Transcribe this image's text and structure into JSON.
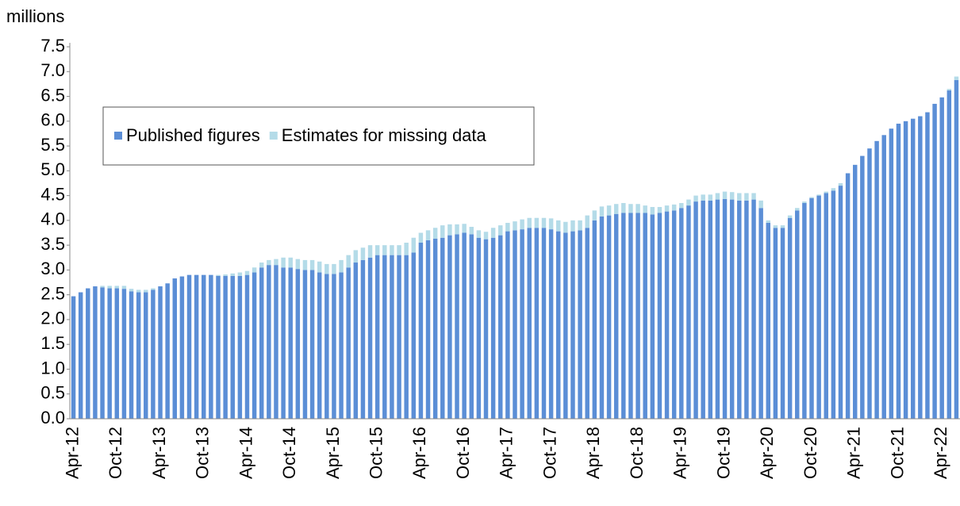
{
  "chart_data": {
    "type": "stacked_bar",
    "y_label": "millions",
    "categories": [
      "Apr-12",
      null,
      null,
      null,
      null,
      null,
      "Oct-12",
      null,
      null,
      null,
      null,
      null,
      "Apr-13",
      null,
      null,
      null,
      null,
      null,
      "Oct-13",
      null,
      null,
      null,
      null,
      null,
      "Apr-14",
      null,
      null,
      null,
      null,
      null,
      "Oct-14",
      null,
      null,
      null,
      null,
      null,
      "Apr-15",
      null,
      null,
      null,
      null,
      null,
      "Oct-15",
      null,
      null,
      null,
      null,
      null,
      "Apr-16",
      null,
      null,
      null,
      null,
      null,
      "Oct-16",
      null,
      null,
      null,
      null,
      null,
      "Apr-17",
      null,
      null,
      null,
      null,
      null,
      "Oct-17",
      null,
      null,
      null,
      null,
      null,
      "Apr-18",
      null,
      null,
      null,
      null,
      null,
      "Oct-18",
      null,
      null,
      null,
      null,
      null,
      "Apr-19",
      null,
      null,
      null,
      null,
      null,
      "Oct-19",
      null,
      null,
      null,
      null,
      null,
      "Apr-20",
      null,
      null,
      null,
      null,
      null,
      "Oct-20",
      null,
      null,
      null,
      null,
      null,
      "Apr-21",
      null,
      null,
      null,
      null,
      null,
      "Oct-21",
      null,
      null,
      null,
      null,
      null,
      "Apr-22",
      null,
      null
    ],
    "series": [
      {
        "name": "Published figures",
        "color": "#5b8ed6",
        "values": [
          2.47,
          2.55,
          2.63,
          2.67,
          2.65,
          2.63,
          2.63,
          2.62,
          2.57,
          2.55,
          2.55,
          2.6,
          2.67,
          2.73,
          2.83,
          2.87,
          2.9,
          2.9,
          2.9,
          2.9,
          2.88,
          2.88,
          2.88,
          2.88,
          2.9,
          2.95,
          3.05,
          3.1,
          3.1,
          3.05,
          3.05,
          3.02,
          3.0,
          3.0,
          2.95,
          2.92,
          2.92,
          2.95,
          3.05,
          3.15,
          3.2,
          3.25,
          3.3,
          3.3,
          3.3,
          3.3,
          3.3,
          3.35,
          3.55,
          3.6,
          3.63,
          3.65,
          3.7,
          3.72,
          3.75,
          3.72,
          3.65,
          3.62,
          3.65,
          3.7,
          3.78,
          3.8,
          3.82,
          3.85,
          3.85,
          3.85,
          3.82,
          3.78,
          3.75,
          3.78,
          3.8,
          3.85,
          4.0,
          4.08,
          4.1,
          4.13,
          4.15,
          4.15,
          4.15,
          4.15,
          4.12,
          4.15,
          4.18,
          4.2,
          4.25,
          4.3,
          4.38,
          4.4,
          4.4,
          4.42,
          4.43,
          4.42,
          4.4,
          4.4,
          4.42,
          4.25,
          3.95,
          3.85,
          3.85,
          4.05,
          4.2,
          4.35,
          4.45,
          4.5,
          4.55,
          4.6,
          4.7,
          4.95,
          5.12,
          5.3,
          5.45,
          5.6,
          5.72,
          5.85,
          5.95,
          6.0,
          6.05,
          6.1,
          6.18,
          6.35,
          6.48,
          6.62,
          6.83
        ]
      },
      {
        "name": "Estimates for missing data",
        "color": "#b4dbe8",
        "values": [
          0,
          0,
          0,
          0,
          0.03,
          0.05,
          0.05,
          0.06,
          0.05,
          0.05,
          0.05,
          0.03,
          0,
          0,
          0,
          0,
          0,
          0,
          0,
          0,
          0.02,
          0.03,
          0.05,
          0.07,
          0.08,
          0.1,
          0.1,
          0.1,
          0.12,
          0.2,
          0.2,
          0.2,
          0.2,
          0.2,
          0.22,
          0.2,
          0.2,
          0.25,
          0.25,
          0.25,
          0.25,
          0.25,
          0.2,
          0.2,
          0.2,
          0.2,
          0.25,
          0.3,
          0.2,
          0.2,
          0.22,
          0.25,
          0.22,
          0.2,
          0.18,
          0.15,
          0.15,
          0.15,
          0.2,
          0.2,
          0.17,
          0.18,
          0.2,
          0.2,
          0.2,
          0.2,
          0.22,
          0.22,
          0.22,
          0.22,
          0.2,
          0.25,
          0.2,
          0.2,
          0.2,
          0.2,
          0.2,
          0.18,
          0.18,
          0.15,
          0.15,
          0.12,
          0.12,
          0.12,
          0.1,
          0.12,
          0.12,
          0.12,
          0.12,
          0.13,
          0.15,
          0.15,
          0.15,
          0.15,
          0.13,
          0.15,
          0.05,
          0.05,
          0.05,
          0.05,
          0.05,
          0.03,
          0.02,
          0.02,
          0.03,
          0.05,
          0.05,
          0,
          0,
          0,
          0,
          0,
          0,
          0,
          0,
          0,
          0,
          0,
          0,
          0,
          0,
          0.03,
          0.07
        ]
      }
    ],
    "ylim": [
      0,
      7.5
    ],
    "yticks": [
      {
        "value": 0,
        "label": "0.0"
      },
      0.5,
      {
        "value": 1,
        "label": "1.0"
      },
      1.5,
      {
        "value": 2,
        "label": "2.0"
      },
      2.5,
      {
        "value": 3,
        "label": "3.0"
      },
      3.5,
      {
        "value": 4,
        "label": "4.0"
      },
      4.5,
      {
        "value": 5,
        "label": "5.0"
      },
      5.5,
      {
        "value": 6,
        "label": "6.0"
      },
      6.5,
      {
        "value": 7,
        "label": "7.0"
      },
      7.5
    ],
    "grid": false,
    "legend": "upper left"
  }
}
